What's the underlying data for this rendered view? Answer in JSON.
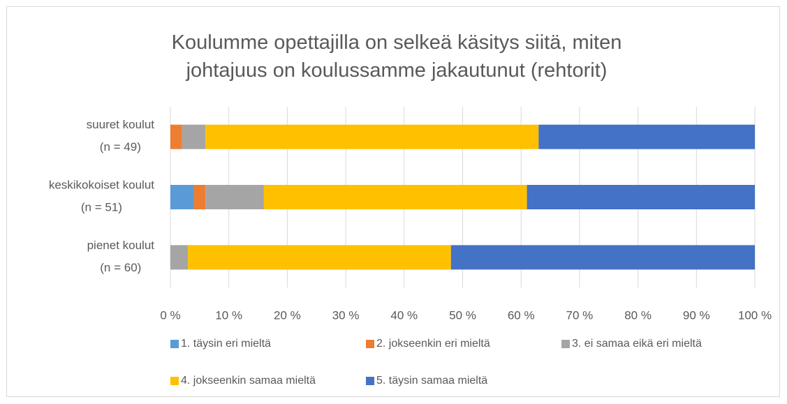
{
  "chart_data": {
    "type": "stacked_bar_horizontal",
    "title": "Koulumme opettajilla on selkeä käsitys siitä, miten\njohtajuus on koulussamme jakautunut (rehtorit)",
    "categories": [
      "suuret koulut\n(n = 49)",
      "keskikokoiset koulut\n(n = 51)",
      "pienet koulut\n(n = 60)"
    ],
    "series": [
      {
        "name": "1. täysin eri mieltä",
        "color": "#5b9bd5",
        "values": [
          0,
          4,
          0
        ]
      },
      {
        "name": "2. jokseenkin eri mieltä",
        "color": "#ed7d31",
        "values": [
          2,
          2,
          0
        ]
      },
      {
        "name": "3. ei samaa eikä eri mieltä",
        "color": "#a5a5a5",
        "values": [
          4,
          10,
          3
        ]
      },
      {
        "name": "4. jokseenkin samaa mieltä",
        "color": "#ffc000",
        "values": [
          57,
          45,
          45
        ]
      },
      {
        "name": "5. täysin samaa mieltä",
        "color": "#4472c4",
        "values": [
          37,
          39,
          52
        ]
      }
    ],
    "xlim": [
      0,
      100
    ],
    "xticks": [
      {
        "value": 0,
        "label": "0 %"
      },
      {
        "value": 10,
        "label": "10 %"
      },
      {
        "value": 20,
        "label": "20 %"
      },
      {
        "value": 30,
        "label": "30 %"
      },
      {
        "value": 40,
        "label": "40 %"
      },
      {
        "value": 50,
        "label": "50 %"
      },
      {
        "value": 60,
        "label": "60 %"
      },
      {
        "value": 70,
        "label": "70 %"
      },
      {
        "value": 80,
        "label": "80 %"
      },
      {
        "value": 90,
        "label": "90 %"
      },
      {
        "value": 100,
        "label": "100 %"
      }
    ],
    "grid": true,
    "legend": "bottom"
  }
}
